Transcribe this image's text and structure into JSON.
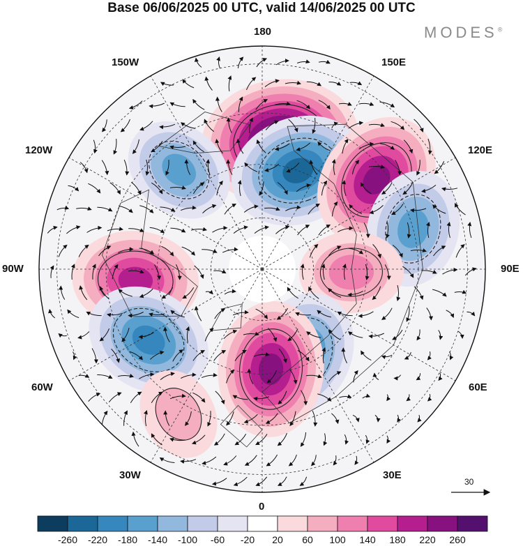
{
  "title": "Base 06/06/2025 00 UTC, valid 14/06/2025 00 UTC",
  "brand": "MODES",
  "brand_mark": "®",
  "longitude_labels": {
    "top": "180",
    "bottom": "0",
    "left": "90W",
    "right": "90E",
    "upper_left": "150W",
    "upper_right": "150E",
    "mid_upper_left": "120W",
    "mid_upper_right": "120E",
    "mid_lower_left": "60W",
    "mid_lower_right": "60E",
    "lower_left": "30W",
    "lower_right": "30E"
  },
  "wind_scale": {
    "value": "30"
  },
  "colorbar": {
    "labels": [
      "-260",
      "-220",
      "-180",
      "-140",
      "-100",
      "-60",
      "-20",
      "20",
      "60",
      "100",
      "140",
      "180",
      "220",
      "260"
    ],
    "colors": [
      "#0c3d5e",
      "#1b6798",
      "#3587be",
      "#5aa0cf",
      "#92b8de",
      "#c2cbe7",
      "#e4e4f2",
      "#ffffff",
      "#fadadd",
      "#f5aebf",
      "#ef7fae",
      "#e04ba0",
      "#b51e8f",
      "#87117f",
      "#54106e"
    ]
  },
  "anomalies": [
    {
      "lon": 172,
      "r": 0.58,
      "value": 300
    },
    {
      "lon": 160,
      "r": 0.47,
      "value": -230
    },
    {
      "lon": 128,
      "r": 0.65,
      "value": 230
    },
    {
      "lon": 105,
      "r": 0.7,
      "value": -170
    },
    {
      "lon": 88,
      "r": 0.4,
      "value": 130
    },
    {
      "lon": 25,
      "r": 0.42,
      "value": -200
    },
    {
      "lon": 5,
      "r": 0.45,
      "value": 230
    },
    {
      "lon": -85,
      "r": 0.57,
      "value": 200
    },
    {
      "lon": -58,
      "r": 0.6,
      "value": -200
    },
    {
      "lon": -140,
      "r": 0.58,
      "value": -150
    },
    {
      "lon": -30,
      "r": 0.75,
      "value": 90
    }
  ]
}
